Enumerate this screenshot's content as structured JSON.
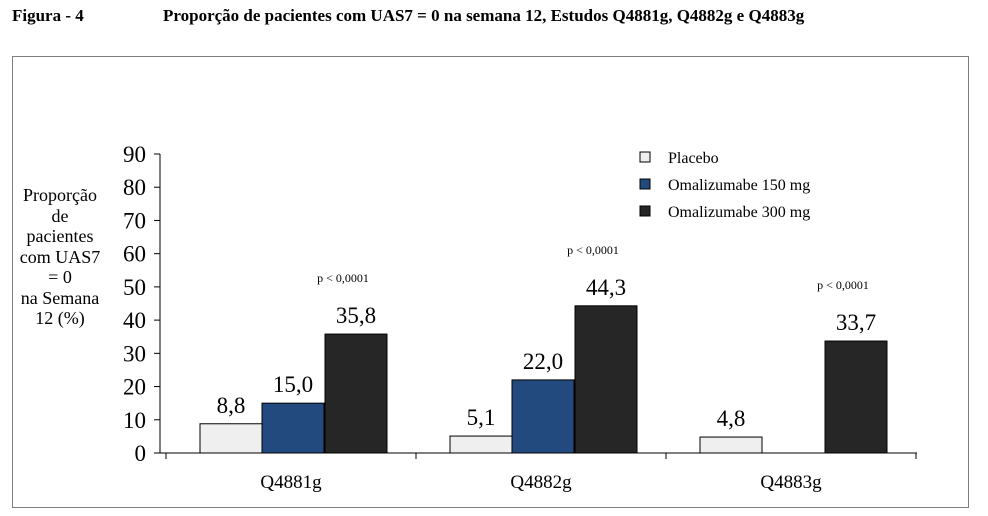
{
  "figure": {
    "label": "Figura - 4",
    "title": "Proporção de pacientes com UAS7 = 0 na semana 12, Estudos Q4881g, Q4882g e Q4883g"
  },
  "colors": {
    "placebo": "#efefef",
    "omalizumabe_150": "#234a7e",
    "omalizumabe_300": "#262626",
    "frame": "#7f7f7f"
  },
  "chart_data": {
    "type": "bar",
    "ylabel_lines": [
      "Proporção",
      "de",
      "pacientes",
      "com UAS7",
      "= 0",
      "na Semana",
      "12 (%)"
    ],
    "xlabel": "",
    "ylim": [
      0,
      90
    ],
    "yticks": [
      0,
      10,
      20,
      30,
      40,
      50,
      60,
      70,
      80,
      90
    ],
    "grid": false,
    "legend_position": "top-right",
    "categories": [
      "Q4881g",
      "Q4882g",
      "Q4883g"
    ],
    "series": [
      {
        "name": "Placebo",
        "color_key": "placebo",
        "values": [
          8.8,
          5.1,
          4.8
        ],
        "labels": [
          "8,8",
          "5,1",
          "4,8"
        ]
      },
      {
        "name": "Omalizumabe 150 mg",
        "color_key": "omalizumabe_150",
        "values": [
          15.0,
          22.0,
          null
        ],
        "labels": [
          "15,0",
          "22,0",
          ""
        ]
      },
      {
        "name": "Omalizumabe 300 mg",
        "color_key": "omalizumabe_300",
        "values": [
          35.8,
          44.3,
          33.7
        ],
        "labels": [
          "35,8",
          "44,3",
          "33,7"
        ]
      }
    ],
    "annotations": [
      {
        "category": "Q4881g",
        "series": "Omalizumabe 300 mg",
        "text": "p < 0,0001"
      },
      {
        "category": "Q4882g",
        "series": "Omalizumabe 300 mg",
        "text": "p < 0,0001"
      },
      {
        "category": "Q4883g",
        "series": "Omalizumabe 300 mg",
        "text": "p < 0,0001"
      }
    ]
  }
}
